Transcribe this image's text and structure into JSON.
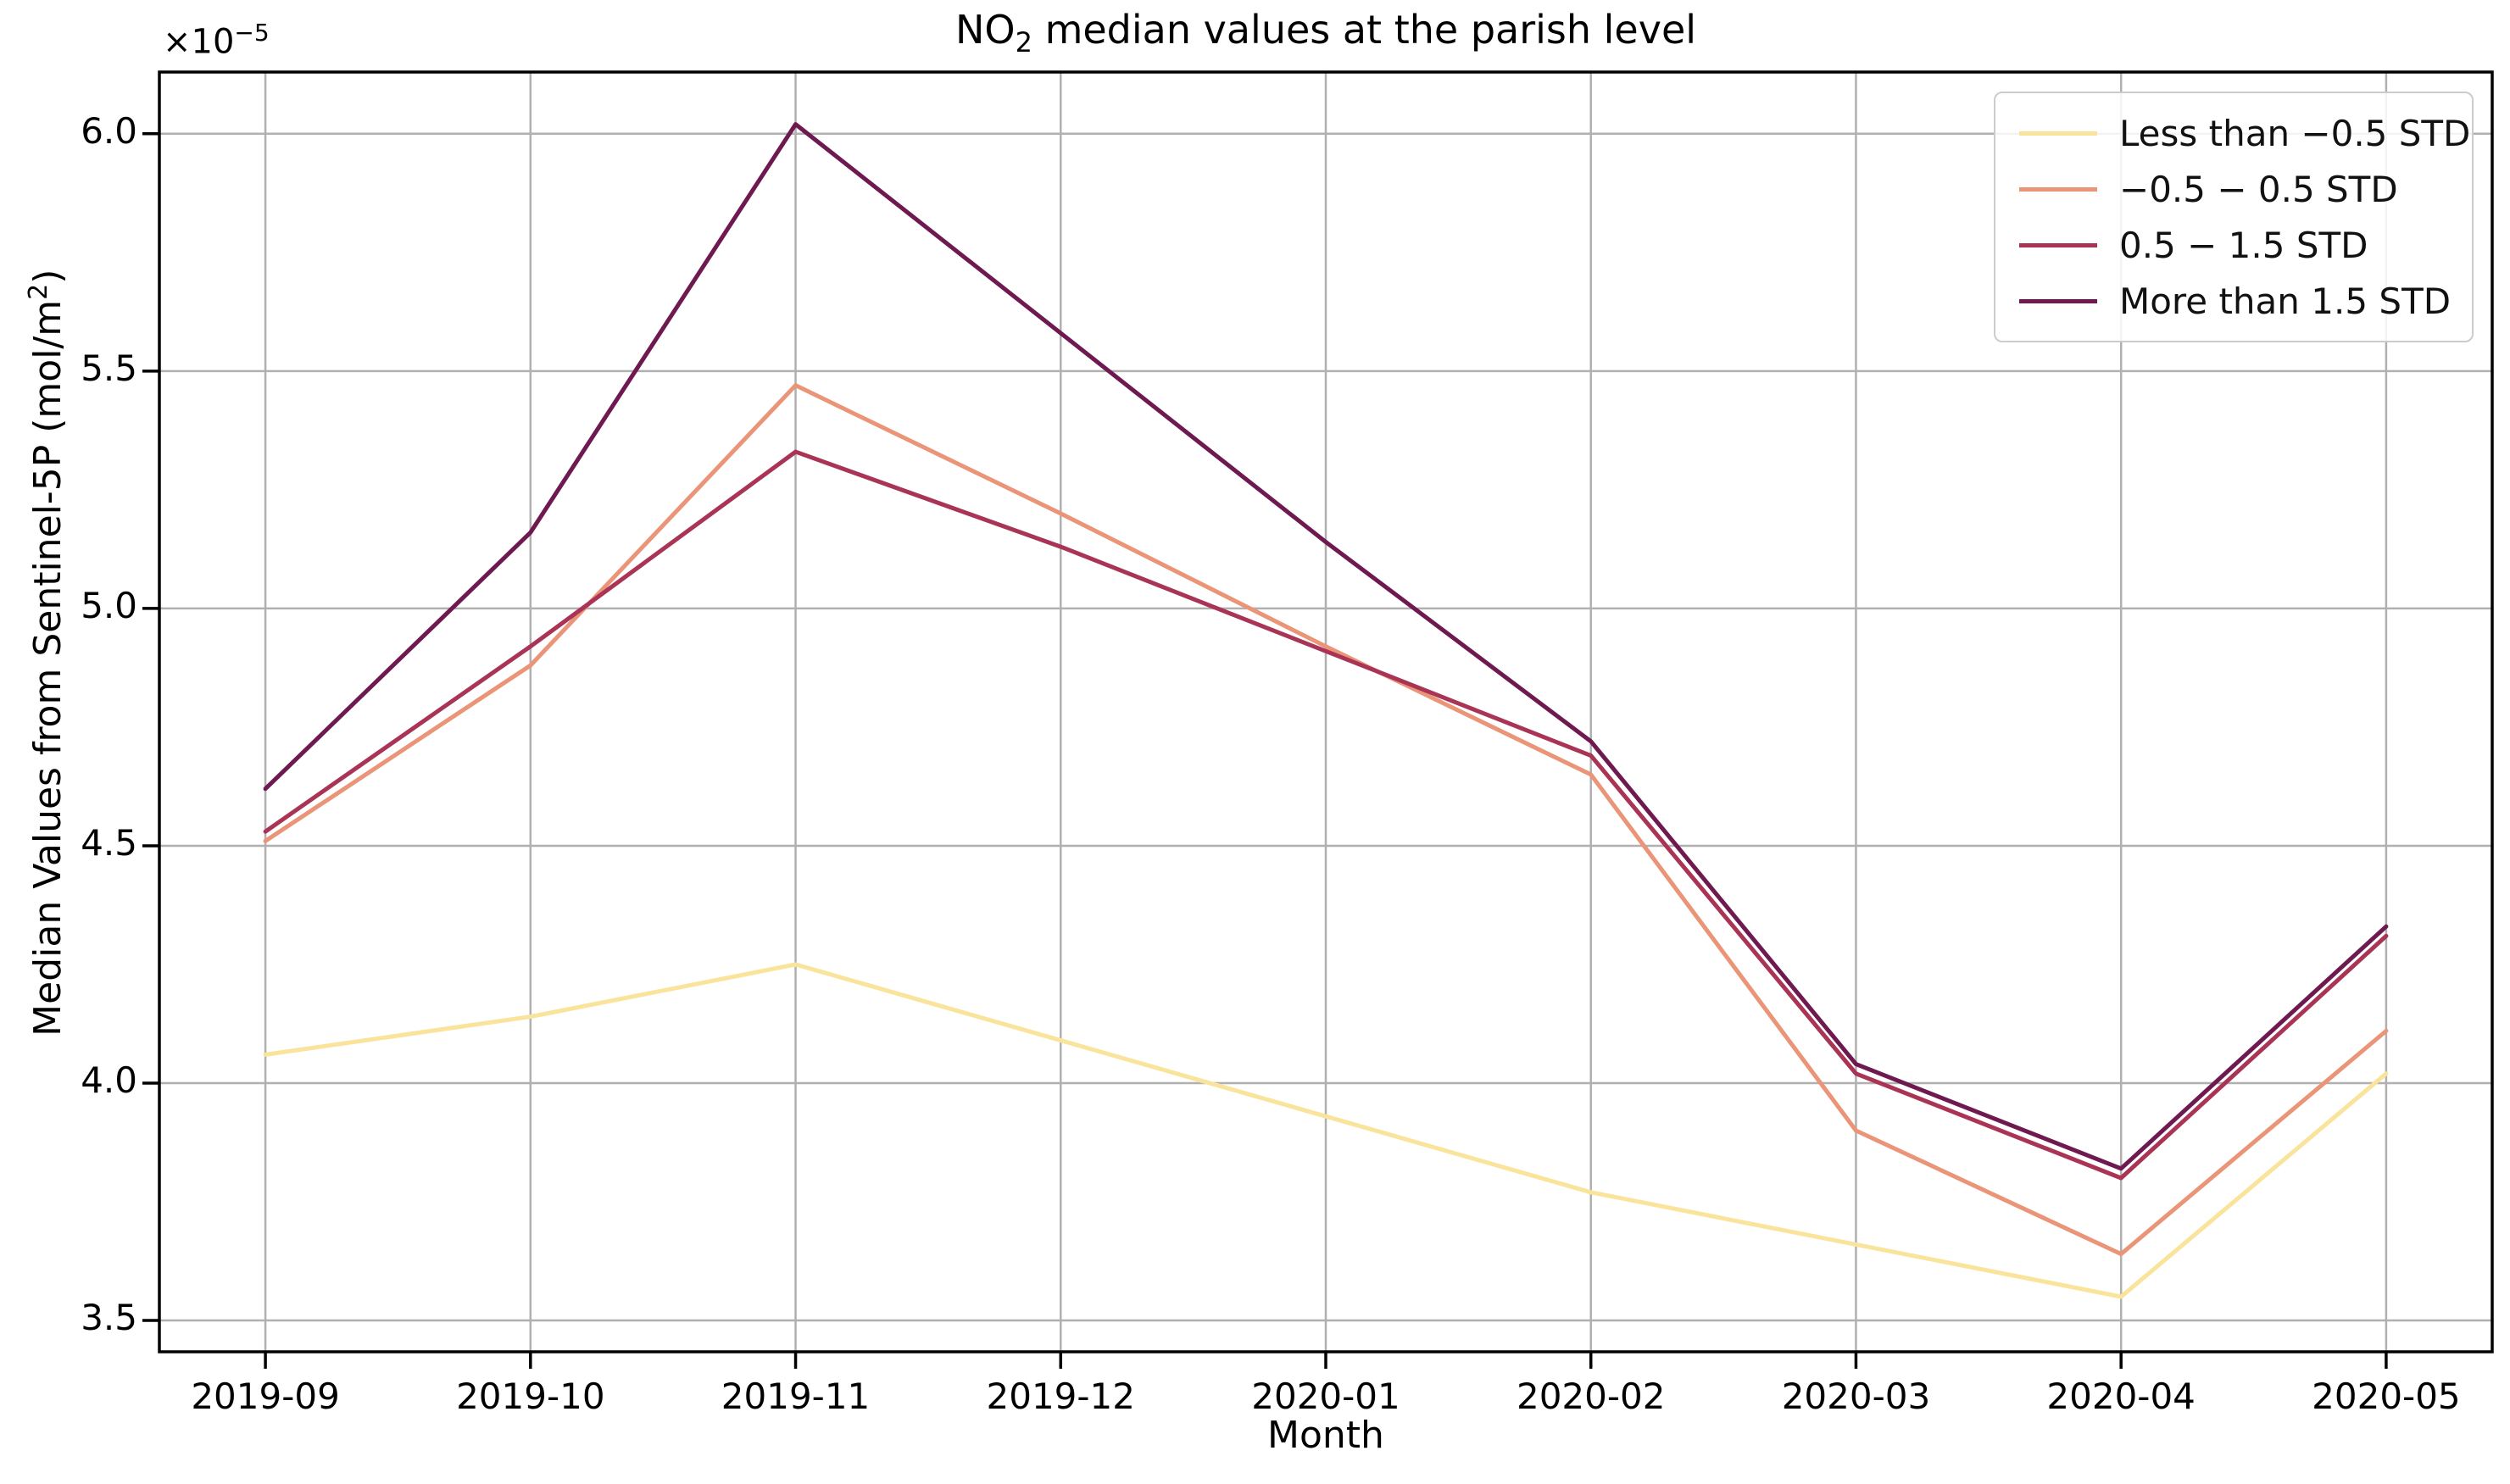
{
  "figure": {
    "background": "#ffffff"
  },
  "title": {
    "prefix": "NO",
    "subscript": "2",
    "rest": " median values at the parish level"
  },
  "axes": {
    "xlabel": "Month",
    "ylabel_prefix": "Median Values from Sentinel-5P (mol/m",
    "ylabel_sup": "2",
    "ylabel_suffix": ")",
    "offset_text_base": "×10",
    "offset_text_exp": "−5",
    "x_tick_labels": [
      "2019-09",
      "2019-10",
      "2019-11",
      "2019-12",
      "2020-01",
      "2020-02",
      "2020-03",
      "2020-04",
      "2020-05"
    ],
    "y_tick_labels": [
      "3.5",
      "4.0",
      "4.5",
      "5.0",
      "5.5",
      "6.0"
    ],
    "y_tick_values": [
      3.5,
      4.0,
      4.5,
      5.0,
      5.5,
      6.0
    ],
    "grid_color": "#b0b0b0",
    "spine_color": "#000000"
  },
  "chart_data": {
    "type": "line",
    "title": "NO2 median values at the parish level",
    "xlabel": "Month",
    "ylabel": "Median Values from Sentinel-5P (mol/m^2)",
    "units_note": "y values are ×10⁻⁵ mol/m²",
    "categories": [
      "2019-09",
      "2019-10",
      "2019-11",
      "2019-12",
      "2020-01",
      "2020-02",
      "2020-03",
      "2020-04",
      "2020-05"
    ],
    "series": [
      {
        "name": "Less than −0.5 STD",
        "color": "#fae39b",
        "values": [
          4.06,
          4.14,
          4.25,
          4.09,
          3.93,
          3.77,
          3.66,
          3.55,
          4.02
        ]
      },
      {
        "name": "−0.5 − 0.5 STD",
        "color": "#ea9478",
        "values": [
          4.51,
          4.88,
          5.47,
          5.2,
          4.92,
          4.65,
          3.9,
          3.64,
          4.11
        ]
      },
      {
        "name": "0.5 − 1.5 STD",
        "color": "#a93456",
        "values": [
          4.53,
          4.92,
          5.33,
          5.13,
          4.91,
          4.69,
          4.02,
          3.8,
          4.31
        ]
      },
      {
        "name": "More than 1.5 STD",
        "color": "#6e1a50",
        "values": [
          4.62,
          5.16,
          6.02,
          5.58,
          5.14,
          4.72,
          4.04,
          3.82,
          4.33
        ]
      }
    ],
    "xlim": [
      -0.4,
      8.4
    ],
    "ylim": [
      3.434,
      6.13
    ],
    "grid": true,
    "legend_position": "upper right",
    "line_width": 5
  }
}
